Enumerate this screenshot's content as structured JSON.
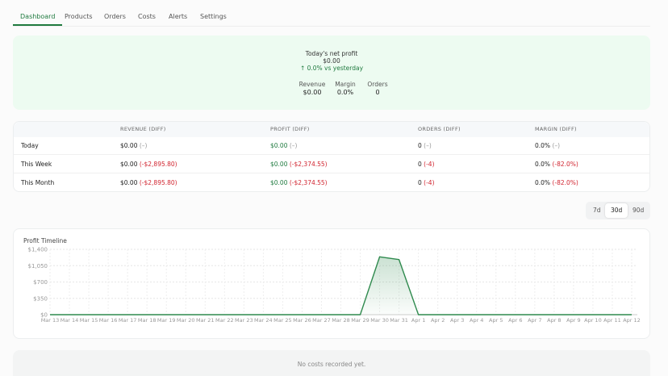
{
  "tabs": {
    "items": [
      "Dashboard",
      "Products",
      "Orders",
      "Costs",
      "Alerts",
      "Settings"
    ],
    "active": 0
  },
  "hero": {
    "label": "Today's net profit",
    "value": "$0.00",
    "change": "↑ 0.0% vs yesterday",
    "stats": [
      {
        "label": "Revenue",
        "value": "$0.00"
      },
      {
        "label": "Margin",
        "value": "0.0%"
      },
      {
        "label": "Orders",
        "value": "0"
      }
    ]
  },
  "table": {
    "columns": [
      "REVENUE (DIFF)",
      "PROFIT (DIFF)",
      "ORDERS (DIFF)",
      "MARGIN (DIFF)"
    ],
    "rows": [
      {
        "label": "Today",
        "cells": [
          {
            "value": "$0.00",
            "diff": "(–)"
          },
          {
            "value": "$0.00",
            "diff": "(–)"
          },
          {
            "value": "0",
            "diff": "(–)"
          },
          {
            "value": "0.0%",
            "diff": "(–)"
          }
        ]
      },
      {
        "label": "This Week",
        "cells": [
          {
            "value": "$0.00",
            "diff": "(-$2,895.80)"
          },
          {
            "value": "$0.00",
            "diff": "(-$2,374.55)"
          },
          {
            "value": "0",
            "diff": "(-4)"
          },
          {
            "value": "0.0%",
            "diff": "(-82.0%)"
          }
        ]
      },
      {
        "label": "This Month",
        "cells": [
          {
            "value": "$0.00",
            "diff": "(-$2,895.80)"
          },
          {
            "value": "$0.00",
            "diff": "(-$2,374.55)"
          },
          {
            "value": "0",
            "diff": "(-4)"
          },
          {
            "value": "0.0%",
            "diff": "(-82.0%)"
          }
        ]
      }
    ]
  },
  "range": {
    "options": [
      "7d",
      "30d",
      "90d"
    ],
    "active": 1
  },
  "chart_data": {
    "type": "area",
    "title": "Profit Timeline",
    "categories": [
      "Mar 13",
      "Mar 14",
      "Mar 15",
      "Mar 16",
      "Mar 17",
      "Mar 18",
      "Mar 19",
      "Mar 20",
      "Mar 21",
      "Mar 22",
      "Mar 23",
      "Mar 24",
      "Mar 25",
      "Mar 26",
      "Mar 27",
      "Mar 28",
      "Mar 29",
      "Mar 30",
      "Mar 31",
      "Apr 1",
      "Apr 2",
      "Apr 3",
      "Apr 4",
      "Apr 5",
      "Apr 6",
      "Apr 7",
      "Apr 8",
      "Apr 9",
      "Apr 10",
      "Apr 11",
      "Apr 12"
    ],
    "values": [
      0,
      0,
      0,
      0,
      0,
      0,
      0,
      0,
      0,
      0,
      0,
      0,
      0,
      0,
      0,
      0,
      0,
      1240,
      1180,
      0,
      0,
      0,
      0,
      0,
      0,
      0,
      0,
      0,
      0,
      0,
      0
    ],
    "color": "#2f8a4e",
    "ylim": [
      0,
      1400
    ],
    "yticks": [
      {
        "value": 0,
        "label": "$0"
      },
      {
        "value": 350,
        "label": "$350"
      },
      {
        "value": 700,
        "label": "$700"
      },
      {
        "value": 1050,
        "label": "$1,050"
      },
      {
        "value": 1400,
        "label": "$1,400"
      }
    ],
    "grid": true
  },
  "costs": {
    "empty": "No costs recorded yet."
  }
}
